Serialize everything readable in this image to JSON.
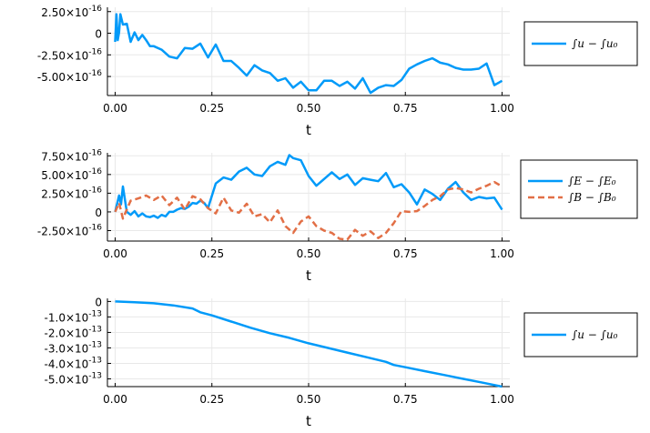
{
  "colors": {
    "blue": "#009af9",
    "orange": "#e26f46",
    "grid": "#e8e8e8",
    "axis": "#000000"
  },
  "chart_data": [
    {
      "type": "line",
      "xlabel": "t",
      "xlim": [
        -0.02,
        1.02
      ],
      "ylim": [
        -7.2e-16,
        3e-16
      ],
      "xticks": [
        0.0,
        0.25,
        0.5,
        0.75,
        1.0
      ],
      "xtick_labels": [
        "0.00",
        "0.25",
        "0.50",
        "0.75",
        "1.00"
      ],
      "yticks": [
        2.5e-16,
        0,
        -2.5e-16,
        -5e-16
      ],
      "ytick_labels": [
        "2.50×10",
        "0",
        "-2.50×10",
        "-5.00×10"
      ],
      "ytick_exps": [
        "-16",
        "",
        "-16",
        "-16"
      ],
      "legend_position": "right",
      "series": [
        {
          "name": "∫u − ∫u₀",
          "color": "#009af9",
          "dash": "",
          "x": [
            0.0,
            0.0033,
            0.0067,
            0.01,
            0.0133,
            0.02,
            0.03,
            0.04,
            0.05,
            0.06,
            0.07,
            0.08,
            0.09,
            0.1,
            0.12,
            0.14,
            0.16,
            0.18,
            0.2,
            0.22,
            0.24,
            0.26,
            0.28,
            0.3,
            0.32,
            0.34,
            0.36,
            0.38,
            0.4,
            0.42,
            0.44,
            0.46,
            0.48,
            0.5,
            0.52,
            0.54,
            0.56,
            0.58,
            0.6,
            0.62,
            0.64,
            0.66,
            0.68,
            0.7,
            0.72,
            0.74,
            0.76,
            0.78,
            0.8,
            0.82,
            0.84,
            0.86,
            0.88,
            0.9,
            0.92,
            0.94,
            0.96,
            0.98,
            1.0
          ],
          "y": [
            -1e-16,
            2.2e-16,
            -8e-17,
            1e-17,
            2.2e-16,
            1e-16,
            1.1e-16,
            -1e-16,
            1e-17,
            -8e-17,
            -2e-17,
            -8e-17,
            -1.5e-16,
            -1.5e-16,
            -1.9e-16,
            -2.7e-16,
            -2.9e-16,
            -1.7e-16,
            -1.8e-16,
            -1.2e-16,
            -2.8e-16,
            -1.3e-16,
            -3.2e-16,
            -3.2e-16,
            -4e-16,
            -4.9e-16,
            -3.7e-16,
            -4.3e-16,
            -4.6e-16,
            -5.5e-16,
            -5.2e-16,
            -6.3e-16,
            -5.6e-16,
            -6.6e-16,
            -6.6e-16,
            -5.5e-16,
            -5.5e-16,
            -6.1e-16,
            -5.6e-16,
            -6.4e-16,
            -5.2e-16,
            -6.9e-16,
            -6.3e-16,
            -6e-16,
            -6.1e-16,
            -5.4e-16,
            -4.1e-16,
            -3.6e-16,
            -3.2e-16,
            -2.9e-16,
            -3.4e-16,
            -3.6e-16,
            -4e-16,
            -4.2e-16,
            -4.2e-16,
            -4.1e-16,
            -3.5e-16,
            -6e-16,
            -5.5e-16
          ]
        }
      ]
    },
    {
      "type": "line",
      "xlabel": "t",
      "xlim": [
        -0.02,
        1.02
      ],
      "ylim": [
        -3.9e-16,
        7.9e-16
      ],
      "xticks": [
        0.0,
        0.25,
        0.5,
        0.75,
        1.0
      ],
      "xtick_labels": [
        "0.00",
        "0.25",
        "0.50",
        "0.75",
        "1.00"
      ],
      "yticks": [
        7.5e-16,
        5e-16,
        2.5e-16,
        0,
        -2.5e-16
      ],
      "ytick_labels": [
        "7.50×10",
        "5.00×10",
        "2.50×10",
        "0",
        "-2.50×10"
      ],
      "ytick_exps": [
        "-16",
        "-16",
        "-16",
        "",
        "-16"
      ],
      "legend_position": "right",
      "series": [
        {
          "name": "∫E − ∫E₀",
          "color": "#009af9",
          "dash": "",
          "x": [
            0.0,
            0.01,
            0.015,
            0.02,
            0.03,
            0.04,
            0.05,
            0.06,
            0.07,
            0.08,
            0.09,
            0.1,
            0.11,
            0.12,
            0.13,
            0.14,
            0.15,
            0.16,
            0.17,
            0.18,
            0.19,
            0.2,
            0.21,
            0.22,
            0.23,
            0.24,
            0.26,
            0.28,
            0.3,
            0.32,
            0.34,
            0.36,
            0.38,
            0.4,
            0.42,
            0.44,
            0.45,
            0.46,
            0.48,
            0.5,
            0.52,
            0.54,
            0.56,
            0.58,
            0.6,
            0.62,
            0.64,
            0.66,
            0.68,
            0.7,
            0.72,
            0.74,
            0.76,
            0.78,
            0.8,
            0.82,
            0.84,
            0.86,
            0.88,
            0.9,
            0.92,
            0.94,
            0.96,
            0.98,
            1.0
          ],
          "y": [
            0,
            2.2e-16,
            1e-16,
            3.4e-16,
            0,
            -4e-17,
            1e-17,
            -6e-17,
            -2e-17,
            -6e-17,
            -7e-17,
            -5e-17,
            -8e-17,
            -4e-17,
            -6e-17,
            0,
            0,
            3e-17,
            5e-17,
            4e-17,
            7e-17,
            1.2e-16,
            1.1e-16,
            1.5e-16,
            1.2e-16,
            5e-17,
            3.8e-16,
            4.6e-16,
            4.3e-16,
            5.4e-16,
            5.9e-16,
            5e-16,
            4.8e-16,
            6.1e-16,
            6.7e-16,
            6.3e-16,
            7.6e-16,
            7.2e-16,
            6.9e-16,
            4.8e-16,
            3.5e-16,
            4.4e-16,
            5.3e-16,
            4.4e-16,
            5e-16,
            3.6e-16,
            4.5e-16,
            4.3e-16,
            4.1e-16,
            5.2e-16,
            3.3e-16,
            3.7e-16,
            2.6e-16,
            1e-16,
            3e-16,
            2.4e-16,
            1.6e-16,
            3.1e-16,
            4e-16,
            2.6e-16,
            1.6e-16,
            2e-16,
            1.8e-16,
            1.9e-16,
            3e-17
          ]
        },
        {
          "name": "∫B − ∫B₀",
          "color": "#e26f46",
          "dash": "7,4",
          "x": [
            0.0,
            0.01,
            0.02,
            0.04,
            0.06,
            0.08,
            0.1,
            0.12,
            0.14,
            0.16,
            0.18,
            0.2,
            0.22,
            0.24,
            0.26,
            0.28,
            0.3,
            0.32,
            0.34,
            0.36,
            0.38,
            0.4,
            0.42,
            0.44,
            0.46,
            0.48,
            0.5,
            0.52,
            0.54,
            0.56,
            0.58,
            0.6,
            0.62,
            0.64,
            0.66,
            0.68,
            0.7,
            0.72,
            0.74,
            0.76,
            0.78,
            0.8,
            0.82,
            0.84,
            0.86,
            0.88,
            0.9,
            0.92,
            0.94,
            0.96,
            0.98,
            1.0
          ],
          "y": [
            0,
            1.2e-16,
            -9e-17,
            1.5e-16,
            1.8e-16,
            2.2e-16,
            1.6e-16,
            2.2e-16,
            9e-17,
            1.9e-16,
            3e-17,
            2.1e-16,
            1.7e-16,
            5e-17,
            -2e-17,
            1.9e-16,
            2e-17,
            -1e-17,
            1.1e-16,
            -6e-17,
            -3e-17,
            -1.4e-16,
            2e-17,
            -1.9e-16,
            -2.8e-16,
            -1.3e-16,
            -6e-17,
            -1.9e-16,
            -2.5e-16,
            -2.8e-16,
            -3.6e-16,
            -3.7e-16,
            -2.4e-16,
            -3.2e-16,
            -2.6e-16,
            -3.5e-16,
            -2.8e-16,
            -1.5e-16,
            1e-17,
            0,
            1e-17,
            8e-17,
            1.6e-16,
            2.1e-16,
            3e-16,
            3.2e-16,
            3e-16,
            2.6e-16,
            3.1e-16,
            3.5e-16,
            4e-16,
            3.4e-16
          ]
        }
      ]
    },
    {
      "type": "line",
      "xlabel": "t",
      "xlim": [
        -0.02,
        1.02
      ],
      "ylim": [
        -5.5e-13,
        2e-14
      ],
      "xticks": [
        0.0,
        0.25,
        0.5,
        0.75,
        1.0
      ],
      "xtick_labels": [
        "0.00",
        "0.25",
        "0.50",
        "0.75",
        "1.00"
      ],
      "yticks": [
        0,
        -1e-13,
        -2e-13,
        -3e-13,
        -4e-13,
        -5e-13
      ],
      "ytick_labels": [
        "0",
        "-1.0×10",
        "-2.0×10",
        "-3.0×10",
        "-4.0×10",
        "-5.0×10"
      ],
      "ytick_exps": [
        "",
        "-13",
        "-13",
        "-13",
        "-13",
        "-13"
      ],
      "legend_position": "right",
      "series": [
        {
          "name": "∫u − ∫u₀",
          "color": "#009af9",
          "dash": "",
          "x": [
            0.0,
            0.05,
            0.1,
            0.15,
            0.2,
            0.22,
            0.25,
            0.3,
            0.35,
            0.4,
            0.45,
            0.5,
            0.55,
            0.6,
            0.65,
            0.7,
            0.72,
            0.75,
            0.8,
            0.85,
            0.9,
            0.95,
            1.0
          ],
          "y": [
            0,
            -5e-15,
            -1.2e-14,
            -2.5e-14,
            -4.5e-14,
            -7e-14,
            -9e-14,
            -1.3e-13,
            -1.7e-13,
            -2.05e-13,
            -2.35e-13,
            -2.7e-13,
            -3e-13,
            -3.3e-13,
            -3.6e-13,
            -3.9e-13,
            -4.1e-13,
            -4.25e-13,
            -4.5e-13,
            -4.75e-13,
            -5e-13,
            -5.25e-13,
            -5.5e-13
          ]
        }
      ]
    }
  ]
}
